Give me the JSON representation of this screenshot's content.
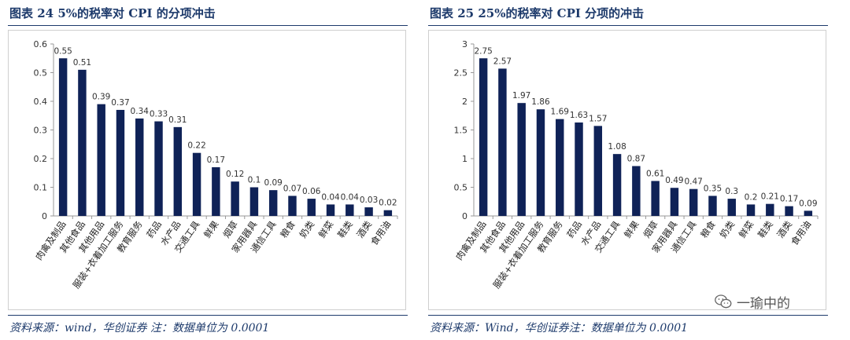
{
  "left": {
    "title": "图表 24   5%的税率对 CPI 的分项冲击",
    "source": "资料来源：wind，华创证券  注：数据单位为 0.0001"
  },
  "right": {
    "title": "图表 25   25%的税率对 CPI 分项的冲击",
    "source": "资料来源：Wind，华创证券注：数据单位为 0.0001"
  },
  "watermark": {
    "text": "一瑜中的",
    "icon": "wechat-icon"
  },
  "colors": {
    "bar": "#0f2257",
    "title": "#1d3a6b",
    "axis": "#999999"
  },
  "chart_data": [
    {
      "type": "bar",
      "title": "5%的税率对 CPI 的分项冲击",
      "categories": [
        "肉禽及制品",
        "其他食品",
        "其他用品",
        "服装+衣着加工服务",
        "教育服务",
        "药品",
        "水产品",
        "交通工具",
        "鲜果",
        "烟草",
        "家用器具",
        "通信工具",
        "粮食",
        "奶类",
        "鲜菜",
        "鞋类",
        "酒类",
        "食用油"
      ],
      "values": [
        0.55,
        0.51,
        0.39,
        0.37,
        0.34,
        0.33,
        0.31,
        0.22,
        0.17,
        0.12,
        0.1,
        0.09,
        0.07,
        0.06,
        0.04,
        0.04,
        0.03,
        0.02
      ],
      "value_labels": [
        "0.55",
        "0.51",
        "0.39",
        "0.37",
        "0.34",
        "0.33",
        "0.31",
        "0.22",
        "0.17",
        "0.12",
        "0.1",
        "0.09",
        "0.07",
        "0.06",
        "0.04",
        "0.04",
        "0.03",
        "0.02"
      ],
      "yticks": [
        "0",
        "0.1",
        "0.2",
        "0.3",
        "0.4",
        "0.5",
        "0.6"
      ],
      "ylim": [
        0,
        0.6
      ],
      "grid": false,
      "legend": "none"
    },
    {
      "type": "bar",
      "title": "25%的税率对 CPI 分项的冲击",
      "categories": [
        "肉禽及制品",
        "其他食品",
        "其他用品",
        "服装+衣着加工服务",
        "教育服务",
        "药品",
        "水产品",
        "交通工具",
        "鲜果",
        "烟草",
        "家用器具",
        "通信工具",
        "粮食",
        "奶类",
        "鲜菜",
        "鞋类",
        "酒类",
        "食用油"
      ],
      "values": [
        2.75,
        2.57,
        1.97,
        1.86,
        1.69,
        1.63,
        1.57,
        1.08,
        0.87,
        0.61,
        0.49,
        0.47,
        0.35,
        0.3,
        0.2,
        0.21,
        0.17,
        0.09
      ],
      "value_labels": [
        "2.75",
        "2.57",
        "1.97",
        "1.86",
        "1.69",
        "1.63",
        "1.57",
        "1.08",
        "0.87",
        "0.61",
        "0.49",
        "0.47",
        "0.35",
        "0.3",
        "0.2",
        "0.21",
        "0.17",
        "0.09"
      ],
      "yticks": [
        "0",
        "0.5",
        "1",
        "1.5",
        "2",
        "2.5",
        "3"
      ],
      "ylim": [
        0,
        3
      ],
      "grid": false,
      "legend": "none"
    }
  ]
}
